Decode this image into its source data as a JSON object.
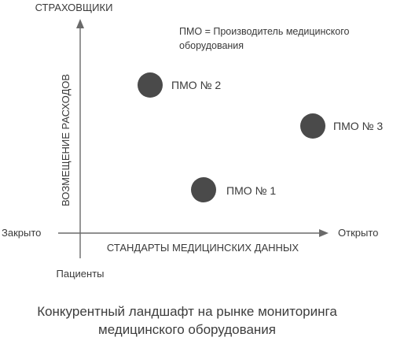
{
  "axes": {
    "y_top_label": "СТРАХОВЩИКИ",
    "y_axis_label": "ВОЗМЕЩЕНИЕ РАСХОДОВ",
    "y_bottom_label": "Пациенты",
    "x_left_label": "Закрыто",
    "x_right_label": "Открыто",
    "x_axis_label": "СТАНДАРТЫ МЕДИЦИНСКИХ ДАННЫХ"
  },
  "legend": {
    "line1": "ПМО = Производитель медицинского",
    "line2": "оборудования"
  },
  "points": [
    {
      "label": "ПМО № 2"
    },
    {
      "label": "ПМО № 3"
    },
    {
      "label": "ПМО № 1"
    }
  ],
  "caption": {
    "line1": "Конкурентный ландшафт на рынке мониторинга",
    "line2": "медицинского оборудования"
  },
  "colors": {
    "axis": "#6a6a6a",
    "point": "#4a4a4a",
    "text": "#3a3a3a"
  }
}
